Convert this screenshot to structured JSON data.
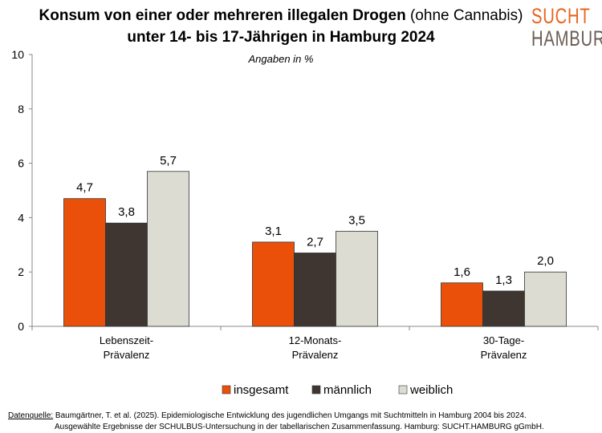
{
  "title_part1": "Konsum von einer oder mehreren illegalen Drogen",
  "title_part1b": " (ohne Cannabis)",
  "title_line2": "unter 14- bis 17-Jährigen in Hamburg 2024",
  "logo": {
    "line1": "SUCHT",
    "line2": "HAMBURG"
  },
  "source_label": "Datenquelle:",
  "source_line1": " Baumgärtner, T. et al. (2025). Epidemiologische Entwicklung des jugendlichen Umgangs mit Suchtmitteln in Hamburg 2004 bis 2024.",
  "source_line2": "Ausgewählte Ergebnisse der SCHULBUS-Untersuchung in der tabellarischen Zusammenfassung. Hamburg: SUCHT.HAMBURG gGmbH.",
  "chart_data": {
    "type": "bar",
    "subtitle": "Angaben in %",
    "categories": [
      [
        "Lebenszeit-",
        "Prävalenz"
      ],
      [
        "12-Monats-",
        "Prävalenz"
      ],
      [
        "30-Tage-",
        "Prävalenz"
      ]
    ],
    "ylim": [
      0,
      10
    ],
    "yticks": [
      0,
      2,
      4,
      6,
      8,
      10
    ],
    "grid": false,
    "legend_placement": "bottom",
    "series": [
      {
        "name": "insgesamt",
        "color": "#ea500a",
        "values": [
          4.7,
          3.1,
          1.6
        ],
        "labels": [
          "4,7",
          "3,1",
          "1,6"
        ]
      },
      {
        "name": "männlich",
        "color": "#3f3631",
        "values": [
          3.8,
          2.7,
          1.3
        ],
        "labels": [
          "3,8",
          "2,7",
          "1,3"
        ]
      },
      {
        "name": "weiblich",
        "color": "#dcdcd3",
        "values": [
          5.7,
          3.5,
          2.0
        ],
        "labels": [
          "5,7",
          "3,5",
          "2,0"
        ]
      }
    ]
  }
}
